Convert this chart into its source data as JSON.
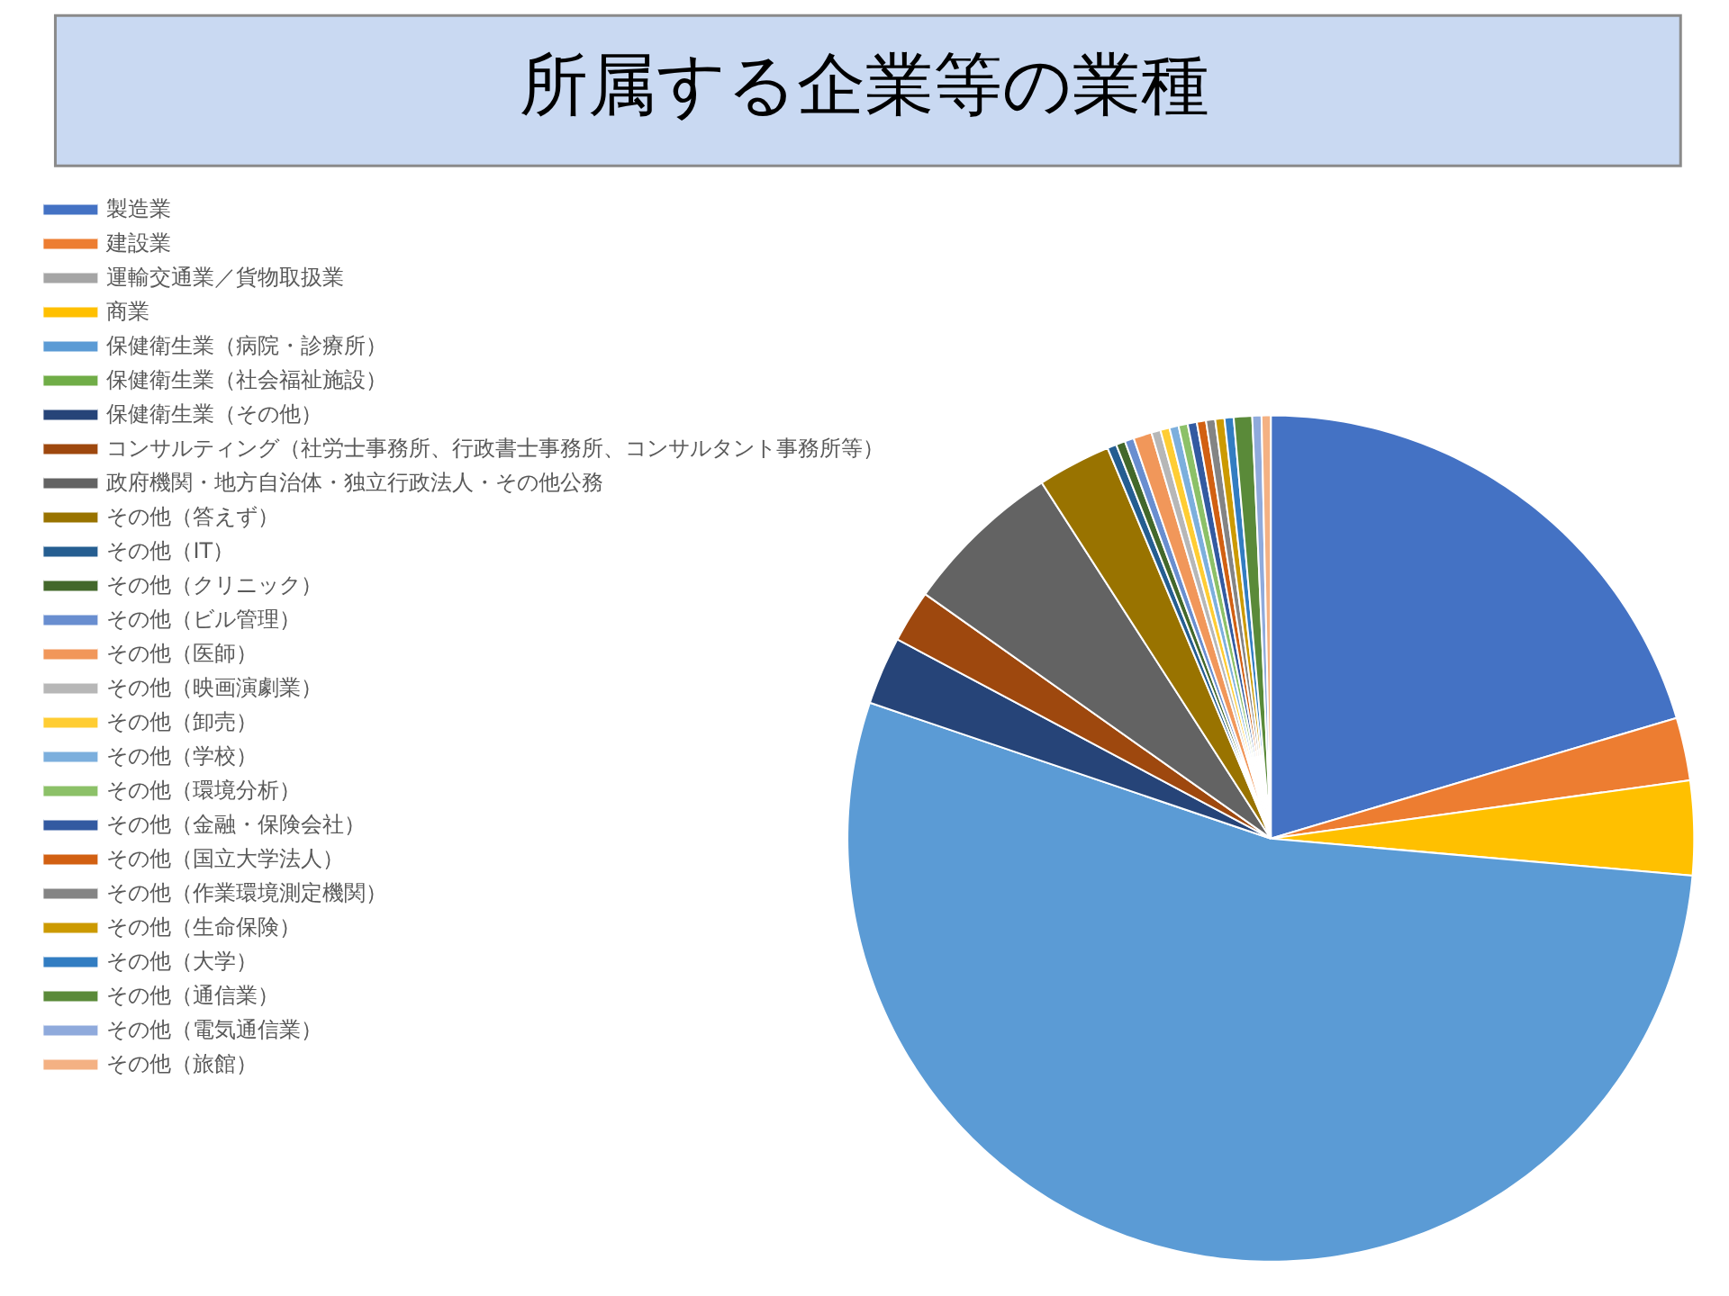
{
  "chart_data": {
    "type": "pie",
    "title": "所属する企業等の業種",
    "categories": [
      "製造業",
      "建設業",
      "運輸交通業／貨物取扱業",
      "商業",
      "保健衛生業（病院・診療所）",
      "保健衛生業（社会福祉施設）",
      "保健衛生業（その他）",
      "コンサルティング（社労士事務所、行政書士事務所、コンサルタント事務所等）",
      "政府機関・地方自治体・独立行政法人・その他公務",
      "その他（答えず）",
      "その他（IT）",
      "その他（クリニック）",
      "その他（ビル管理）",
      "その他（医師）",
      "その他（映画演劇業）",
      "その他（卸売）",
      "その他（学校）",
      "その他（環境分析）",
      "その他（金融・保険会社）",
      "その他（国立大学法人）",
      "その他（作業環境測定機関）",
      "その他（生命保険）",
      "その他（大学）",
      "その他（通信業）",
      "その他（電気通信業）",
      "その他（旅館）"
    ],
    "values": [
      20.4,
      2.4,
      0,
      3.6,
      53.8,
      0,
      2.6,
      2.0,
      6.1,
      2.8,
      0.35,
      0.35,
      0.35,
      0.7,
      0.35,
      0.35,
      0.35,
      0.35,
      0.35,
      0.35,
      0.35,
      0.35,
      0.35,
      0.7,
      0.35,
      0.35
    ],
    "colors": [
      "#4472c4",
      "#ed7d31",
      "#a5a5a5",
      "#ffc000",
      "#5b9bd5",
      "#70ad47",
      "#264478",
      "#9e480e",
      "#636363",
      "#997300",
      "#255e91",
      "#43682b",
      "#698ed0",
      "#f1975a",
      "#b7b7b7",
      "#ffcd33",
      "#7cafdd",
      "#8cc168",
      "#335aa1",
      "#d26012",
      "#848484",
      "#cc9a00",
      "#327dc2",
      "#5a8a39",
      "#8faadc",
      "#f4b183"
    ],
    "legend": "left"
  }
}
